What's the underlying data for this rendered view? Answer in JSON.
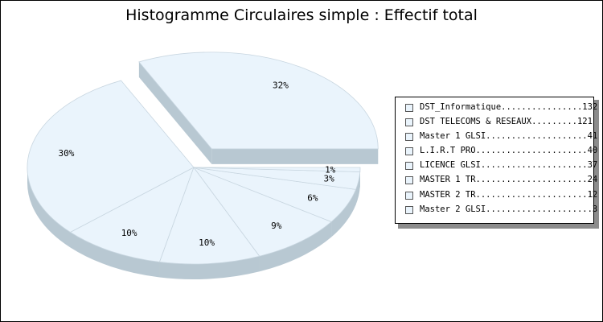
{
  "chart_data": {
    "type": "pie",
    "title": "Histogramme Circulaires simple : Effectif total",
    "legend_position": "right",
    "slice_color": "#eaf4fc",
    "side_color": "#b8c8d2",
    "border_color": "#c8d6e0",
    "exploded_slice": 0,
    "slices": [
      {
        "label": "DST_Informatique",
        "value": 132,
        "percent_label": "32%"
      },
      {
        "label": "DST TELECOMS & RESEAUX",
        "value": 121,
        "percent_label": "30%"
      },
      {
        "label": "Master 1 GLSI",
        "value": 41,
        "percent_label": "10%"
      },
      {
        "label": "L.I.R.T PRO",
        "value": 40,
        "percent_label": "10%"
      },
      {
        "label": "LICENCE GLSI",
        "value": 37,
        "percent_label": "9%"
      },
      {
        "label": "MASTER 1 TR",
        "value": 24,
        "percent_label": "6%"
      },
      {
        "label": "MASTER 2 TR",
        "value": 12,
        "percent_label": "3%"
      },
      {
        "label": "Master 2 GLSI",
        "value": 3,
        "percent_label": "1%"
      }
    ]
  },
  "legend": {
    "entries": [
      "DST_Informatique................132",
      "DST TELECOMS & RESEAUX.........121",
      "Master 1 GLSI....................41",
      "L.I.R.T PRO......................40",
      "LICENCE GLSI.....................37",
      "MASTER 1 TR......................24",
      "MASTER 2 TR......................12",
      "Master 2 GLSI.....................3"
    ]
  }
}
